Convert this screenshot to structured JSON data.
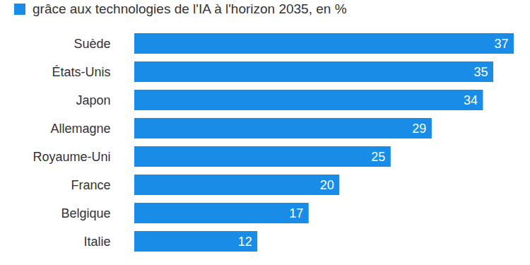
{
  "chart_data": {
    "type": "bar",
    "orientation": "horizontal",
    "title": "grâce aux technologies de l'IA à l'horizon 2035, en %",
    "categories": [
      "Suède",
      "États-Unis",
      "Japon",
      "Allemagne",
      "Royaume-Uni",
      "France",
      "Belgique",
      "Italie"
    ],
    "values": [
      37,
      35,
      34,
      29,
      25,
      20,
      17,
      12
    ],
    "color": "#188ce6",
    "xlim": [
      0,
      37
    ],
    "grid": false,
    "data_labels": true,
    "tick_labels": "y"
  }
}
